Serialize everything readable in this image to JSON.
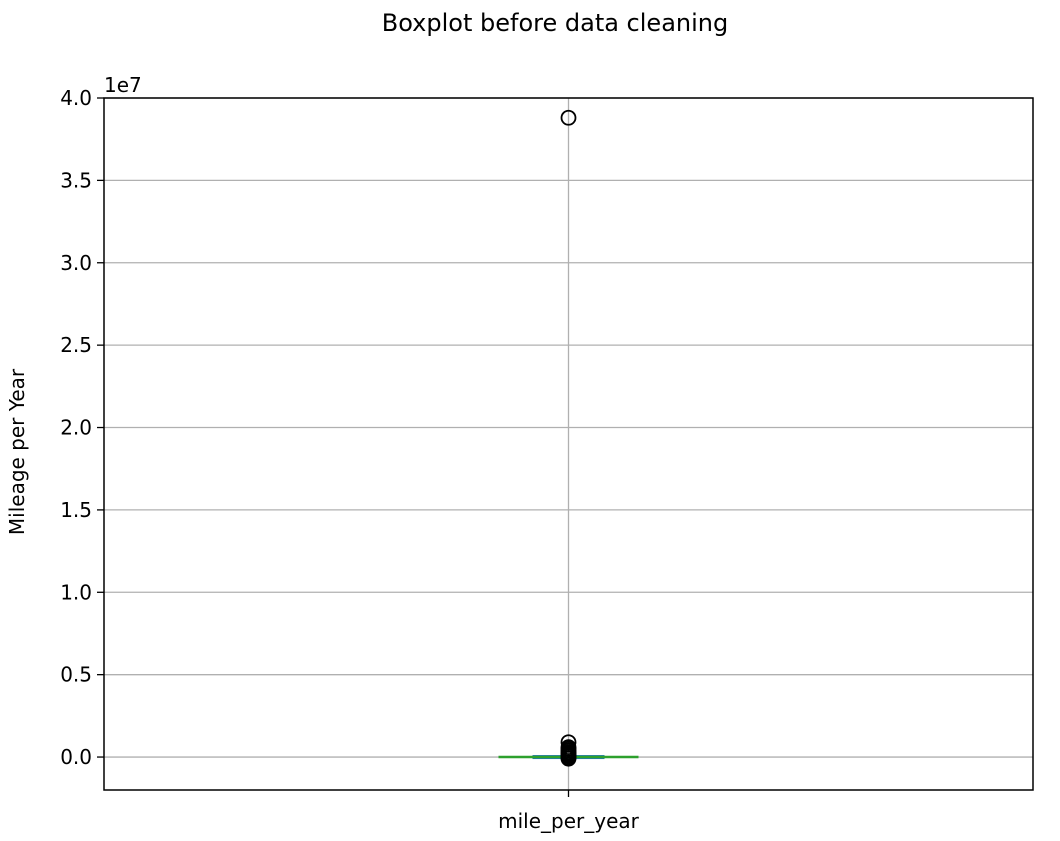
{
  "chart_data": {
    "type": "box",
    "title": "Boxplot before data cleaning",
    "ylabel": "Mileage per Year",
    "xlabel": "",
    "y_scale_label": "1e7",
    "ylim": [
      -0.2,
      4.0
    ],
    "y_units_multiplier": 10000000,
    "yticks": [
      0.0,
      0.5,
      1.0,
      1.5,
      2.0,
      2.5,
      3.0,
      3.5,
      4.0
    ],
    "ytick_labels": [
      "0.0",
      "0.5",
      "1.0",
      "1.5",
      "2.0",
      "2.5",
      "3.0",
      "3.5",
      "4.0"
    ],
    "categories": [
      "mile_per_year"
    ],
    "grid": true,
    "boxes": [
      {
        "name": "mile_per_year",
        "whisker_low": 0.0,
        "q1": 0.0,
        "median": 0.0,
        "q3": 0.0,
        "whisker_high": 0.0,
        "outliers": [
          3.88,
          0.09,
          0.06,
          0.05,
          0.04,
          0.03,
          0.025,
          0.02,
          0.015,
          0.01,
          0.005,
          -0.005,
          -0.01
        ]
      }
    ],
    "colors": {
      "median": "#2ca02c",
      "box": "#1f77b4",
      "grid": "#b0b0b0",
      "axis": "#000000"
    }
  }
}
